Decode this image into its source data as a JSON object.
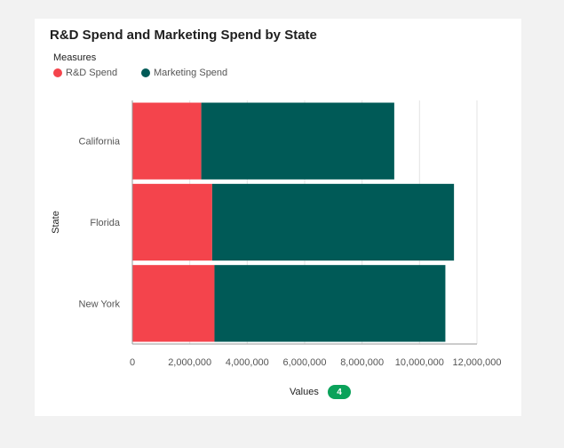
{
  "chart": {
    "title": "R&D Spend and Marketing Spend by State",
    "legend_title": "Measures",
    "footer_label": "Values",
    "footer_badge": "4"
  },
  "chart_data": {
    "type": "bar",
    "orientation": "horizontal",
    "stacked": true,
    "title": "R&D Spend and Marketing Spend by State",
    "xlabel": "",
    "ylabel": "State",
    "categories": [
      "California",
      "Florida",
      "New York"
    ],
    "series": [
      {
        "name": "R&D Spend",
        "color": "#f4444c",
        "values": [
          2400000,
          2780000,
          2860000
        ]
      },
      {
        "name": "Marketing Spend",
        "color": "#005a57",
        "values": [
          6720000,
          8420000,
          8040000
        ]
      }
    ],
    "xlim": [
      0,
      12000000
    ],
    "xticks": [
      0,
      2000000,
      4000000,
      6000000,
      8000000,
      10000000,
      12000000
    ],
    "xtick_labels": [
      "0",
      "2,000,000",
      "4,000,000",
      "6,000,000",
      "8,000,000",
      "10,000,000",
      "12,000,000"
    ],
    "grid": true,
    "legend_position": "top-left"
  }
}
